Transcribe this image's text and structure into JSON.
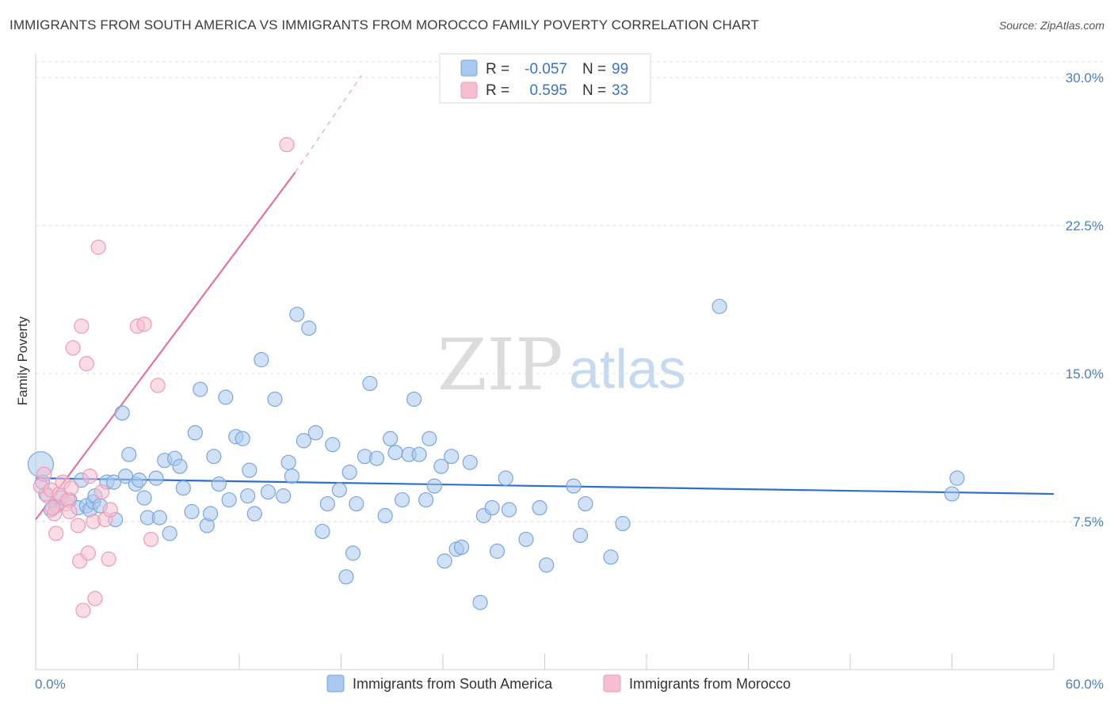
{
  "title": "IMMIGRANTS FROM SOUTH AMERICA VS IMMIGRANTS FROM MOROCCO FAMILY POVERTY CORRELATION CHART",
  "source": "Source: ZipAtlas.com",
  "watermark": {
    "zip": "ZIP",
    "atlas": "atlas"
  },
  "legend": {
    "r_label": "R =",
    "n_label": "N =",
    "rows": [
      {
        "r": "-0.057",
        "n": "99",
        "color": "#a9c8ef",
        "stroke": "#7aa6dd"
      },
      {
        "r": "0.595",
        "n": "33",
        "color": "#f6bfd0",
        "stroke": "#ee9ab5"
      }
    ]
  },
  "bottom_legend": [
    {
      "label": "Immigrants from South America",
      "color": "#a9c8ef",
      "stroke": "#7aa6dd"
    },
    {
      "label": "Immigrants from Morocco",
      "color": "#f6bfd0",
      "stroke": "#ee9ab5"
    }
  ],
  "chart_data": {
    "type": "scatter",
    "xlabel": "",
    "ylabel": "Family Poverty",
    "xlim": [
      0,
      60
    ],
    "ylim": [
      0,
      30.8
    ],
    "x_tick_labels": {
      "min": "0.0%",
      "max": "60.0%"
    },
    "y_ticks": [
      {
        "value": 7.5,
        "label": "7.5%"
      },
      {
        "value": 15.0,
        "label": "15.0%"
      },
      {
        "value": 22.5,
        "label": "22.5%"
      },
      {
        "value": 30.0,
        "label": "30.0%"
      }
    ],
    "grid": true,
    "series": [
      {
        "name": "Immigrants from South America",
        "color": "#7aa6dd",
        "fill": "#a9c8ef",
        "trend": {
          "x0": 0,
          "y0": 9.7,
          "x1": 60,
          "y1": 8.9
        },
        "points": [
          [
            0.3,
            10.4
          ],
          [
            0.6,
            8.9
          ],
          [
            0.9,
            8.1
          ],
          [
            1.2,
            8.3
          ],
          [
            1.5,
            8.7
          ],
          [
            2.0,
            8.6
          ],
          [
            2.5,
            8.2
          ],
          [
            2.7,
            9.6
          ],
          [
            3.0,
            8.3
          ],
          [
            3.2,
            8.1
          ],
          [
            3.4,
            8.5
          ],
          [
            3.5,
            8.8
          ],
          [
            3.8,
            8.3
          ],
          [
            4.2,
            9.5
          ],
          [
            4.6,
            9.5
          ],
          [
            4.7,
            7.6
          ],
          [
            5.1,
            13.0
          ],
          [
            5.3,
            9.8
          ],
          [
            5.5,
            10.9
          ],
          [
            5.9,
            9.4
          ],
          [
            6.1,
            9.6
          ],
          [
            6.4,
            8.7
          ],
          [
            6.6,
            7.7
          ],
          [
            7.1,
            9.7
          ],
          [
            7.3,
            7.7
          ],
          [
            7.6,
            10.6
          ],
          [
            7.9,
            6.9
          ],
          [
            8.2,
            10.7
          ],
          [
            8.5,
            10.3
          ],
          [
            8.7,
            9.2
          ],
          [
            9.2,
            8.0
          ],
          [
            9.4,
            12.0
          ],
          [
            9.7,
            14.2
          ],
          [
            10.1,
            7.3
          ],
          [
            10.3,
            7.9
          ],
          [
            10.5,
            10.8
          ],
          [
            10.8,
            9.4
          ],
          [
            11.2,
            13.8
          ],
          [
            11.4,
            8.6
          ],
          [
            11.8,
            11.8
          ],
          [
            12.2,
            11.7
          ],
          [
            12.5,
            8.8
          ],
          [
            12.6,
            10.1
          ],
          [
            12.9,
            7.9
          ],
          [
            13.3,
            15.7
          ],
          [
            13.7,
            9.0
          ],
          [
            14.1,
            13.7
          ],
          [
            14.6,
            8.8
          ],
          [
            14.9,
            10.5
          ],
          [
            15.1,
            9.8
          ],
          [
            15.4,
            18.0
          ],
          [
            15.8,
            11.6
          ],
          [
            16.1,
            17.3
          ],
          [
            16.5,
            12.0
          ],
          [
            16.9,
            7.0
          ],
          [
            17.2,
            8.4
          ],
          [
            17.5,
            11.4
          ],
          [
            17.9,
            9.1
          ],
          [
            18.3,
            4.7
          ],
          [
            18.5,
            10.0
          ],
          [
            18.7,
            5.9
          ],
          [
            18.9,
            8.4
          ],
          [
            19.4,
            10.8
          ],
          [
            19.7,
            14.5
          ],
          [
            20.1,
            10.7
          ],
          [
            20.6,
            7.8
          ],
          [
            20.9,
            11.7
          ],
          [
            21.2,
            11.0
          ],
          [
            21.6,
            8.6
          ],
          [
            22.0,
            10.9
          ],
          [
            22.3,
            13.7
          ],
          [
            22.6,
            10.9
          ],
          [
            23.0,
            8.6
          ],
          [
            23.2,
            11.7
          ],
          [
            23.5,
            9.3
          ],
          [
            23.9,
            10.3
          ],
          [
            24.1,
            5.5
          ],
          [
            24.5,
            10.8
          ],
          [
            24.8,
            6.1
          ],
          [
            25.1,
            6.2
          ],
          [
            25.6,
            10.5
          ],
          [
            26.2,
            3.4
          ],
          [
            26.4,
            7.8
          ],
          [
            26.9,
            8.2
          ],
          [
            27.2,
            6.0
          ],
          [
            27.7,
            9.7
          ],
          [
            27.9,
            8.1
          ],
          [
            28.9,
            6.6
          ],
          [
            29.7,
            8.2
          ],
          [
            30.1,
            5.3
          ],
          [
            31.7,
            9.3
          ],
          [
            32.1,
            6.8
          ],
          [
            32.4,
            8.4
          ],
          [
            33.9,
            5.7
          ],
          [
            34.6,
            7.4
          ],
          [
            40.3,
            18.4
          ],
          [
            54.0,
            8.9
          ],
          [
            54.3,
            9.7
          ],
          [
            0.4,
            9.5
          ]
        ],
        "point_sizes_note": "one larger point near origin",
        "large_point_index": 0
      },
      {
        "name": "Immigrants from Morocco",
        "color": "#ee9ab5",
        "fill": "#f6bfd0",
        "trend": {
          "x0": 0,
          "y0": 7.6,
          "x1": 15.3,
          "y1": 25.2,
          "dash_x1": 19.2,
          "dash_y1": 30.1
        },
        "points": [
          [
            0.3,
            9.3
          ],
          [
            0.5,
            9.9
          ],
          [
            0.7,
            8.8
          ],
          [
            0.9,
            9.1
          ],
          [
            1.1,
            7.9
          ],
          [
            1.2,
            6.9
          ],
          [
            1.4,
            8.9
          ],
          [
            1.6,
            9.5
          ],
          [
            1.8,
            8.4
          ],
          [
            1.9,
            8.6
          ],
          [
            2.0,
            8.0
          ],
          [
            2.1,
            9.2
          ],
          [
            2.2,
            16.3
          ],
          [
            2.5,
            7.3
          ],
          [
            2.6,
            5.5
          ],
          [
            2.7,
            17.4
          ],
          [
            2.8,
            3.0
          ],
          [
            3.0,
            15.5
          ],
          [
            3.1,
            5.9
          ],
          [
            3.2,
            9.8
          ],
          [
            3.4,
            7.5
          ],
          [
            3.5,
            3.6
          ],
          [
            3.7,
            21.4
          ],
          [
            3.9,
            9.0
          ],
          [
            4.1,
            7.6
          ],
          [
            4.3,
            5.6
          ],
          [
            4.4,
            8.1
          ],
          [
            6.0,
            17.4
          ],
          [
            6.4,
            17.5
          ],
          [
            6.8,
            6.6
          ],
          [
            7.2,
            14.4
          ],
          [
            14.8,
            26.6
          ],
          [
            1.0,
            8.2
          ]
        ]
      }
    ]
  }
}
